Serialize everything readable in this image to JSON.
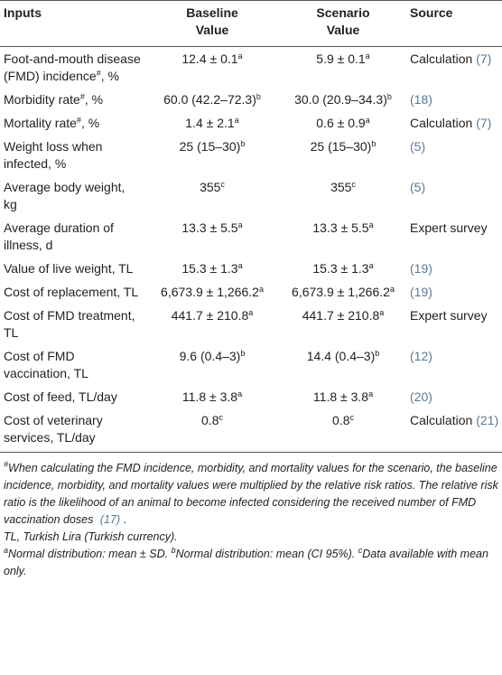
{
  "table": {
    "header": [
      "Inputs",
      "Baseline Value",
      "Scenario Value",
      "Source"
    ],
    "rows": [
      [
        [
          {
            "text": "Foot-and-mouth disease (FMD) incidence"
          },
          {
            "sup": "#"
          },
          {
            "text": ", %"
          }
        ],
        [
          {
            "text": "12.4 ± 0.1"
          },
          {
            "sup": "a"
          }
        ],
        [
          {
            "text": "5.9 ± 0.1"
          },
          {
            "sup": "a"
          }
        ],
        [
          {
            "text": "Calculation"
          },
          {
            "ref": "(7)"
          }
        ]
      ],
      [
        [
          {
            "text": "Morbidity rate"
          },
          {
            "sup": "#"
          },
          {
            "text": ", %"
          }
        ],
        [
          {
            "text": "60.0 (42.2–72.3)"
          },
          {
            "sup": "b"
          }
        ],
        [
          {
            "text": "30.0 (20.9–34.3)"
          },
          {
            "sup": "b"
          }
        ],
        [
          {
            "ref": "(18)"
          }
        ]
      ],
      [
        [
          {
            "text": "Mortality rate"
          },
          {
            "sup": "#"
          },
          {
            "text": ", %"
          }
        ],
        [
          {
            "text": "1.4 ± 2.1"
          },
          {
            "sup": "a"
          }
        ],
        [
          {
            "text": "0.6 ± 0.9"
          },
          {
            "sup": "a"
          }
        ],
        [
          {
            "text": "Calculation"
          },
          {
            "ref": "(7)"
          }
        ]
      ],
      [
        [
          {
            "text": "Weight loss when infected, %"
          }
        ],
        [
          {
            "text": "25 (15–30)"
          },
          {
            "sup": "b"
          }
        ],
        [
          {
            "text": "25 (15–30)"
          },
          {
            "sup": "b"
          }
        ],
        [
          {
            "ref": "(5)"
          }
        ]
      ],
      [
        [
          {
            "text": "Average body weight, kg"
          }
        ],
        [
          {
            "text": "355"
          },
          {
            "sup": "c"
          }
        ],
        [
          {
            "text": "355"
          },
          {
            "sup": "c"
          }
        ],
        [
          {
            "ref": "(5)"
          }
        ]
      ],
      [
        [
          {
            "text": "Average duration of illness, d"
          }
        ],
        [
          {
            "text": "13.3 ± 5.5"
          },
          {
            "sup": "a"
          }
        ],
        [
          {
            "text": "13.3 ± 5.5"
          },
          {
            "sup": "a"
          }
        ],
        [
          {
            "text": "Expert survey"
          }
        ]
      ],
      [
        [
          {
            "text": "Value of live weight, TL"
          }
        ],
        [
          {
            "text": "15.3 ± 1.3"
          },
          {
            "sup": "a"
          }
        ],
        [
          {
            "text": "15.3 ± 1.3"
          },
          {
            "sup": "a"
          }
        ],
        [
          {
            "ref": "(19)"
          }
        ]
      ],
      [
        [
          {
            "text": "Cost of replacement, TL"
          }
        ],
        [
          {
            "text": "6,673.9 ± 1,266.2"
          },
          {
            "sup": "a"
          }
        ],
        [
          {
            "text": "6,673.9 ± 1,266.2"
          },
          {
            "sup": "a"
          }
        ],
        [
          {
            "ref": "(19)"
          }
        ]
      ],
      [
        [
          {
            "text": "Cost of FMD treatment, TL"
          }
        ],
        [
          {
            "text": "441.7 ± 210.8"
          },
          {
            "sup": "a"
          }
        ],
        [
          {
            "text": "441.7 ± 210.8"
          },
          {
            "sup": "a"
          }
        ],
        [
          {
            "text": "Expert survey"
          }
        ]
      ],
      [
        [
          {
            "text": "Cost of FMD vaccination, TL"
          }
        ],
        [
          {
            "text": "9.6 (0.4–3)"
          },
          {
            "sup": "b"
          }
        ],
        [
          {
            "text": "14.4 (0.4–3)"
          },
          {
            "sup": "b"
          }
        ],
        [
          {
            "ref": "(12)"
          }
        ]
      ],
      [
        [
          {
            "text": "Cost of feed, TL/day"
          }
        ],
        [
          {
            "text": "11.8 ± 3.8"
          },
          {
            "sup": "a"
          }
        ],
        [
          {
            "text": "11.8 ± 3.8"
          },
          {
            "sup": "a"
          }
        ],
        [
          {
            "ref": "(20)"
          }
        ]
      ],
      [
        [
          {
            "text": "Cost of veterinary services, TL/day"
          }
        ],
        [
          {
            "text": "0.8"
          },
          {
            "sup": "c"
          }
        ],
        [
          {
            "text": "0.8"
          },
          {
            "sup": "c"
          }
        ],
        [
          {
            "text": "Calculation"
          },
          {
            "ref": "(21)"
          }
        ]
      ]
    ],
    "footnotes": [
      [
        {
          "sup": "#"
        },
        {
          "text": "When calculating the FMD incidence, morbidity, and mortality values for the scenario, the baseline incidence, morbidity, and mortality values were multiplied by the relative risk ratios. The relative risk ratio is the likelihood of an animal to become infected considering the received number of FMD vaccination doses"
        },
        {
          "ref": "(17)"
        },
        {
          "text": "."
        }
      ],
      [
        {
          "text": "TL, Turkish Lira (Turkish currency)."
        }
      ],
      [
        {
          "sup": "a"
        },
        {
          "text": "Normal distribution: mean ± SD."
        },
        {
          "sup": "b"
        },
        {
          "text": "Normal distribution: mean (CI 95%)."
        },
        {
          "sup": "c"
        },
        {
          "text": "Data available with mean only."
        }
      ]
    ]
  }
}
